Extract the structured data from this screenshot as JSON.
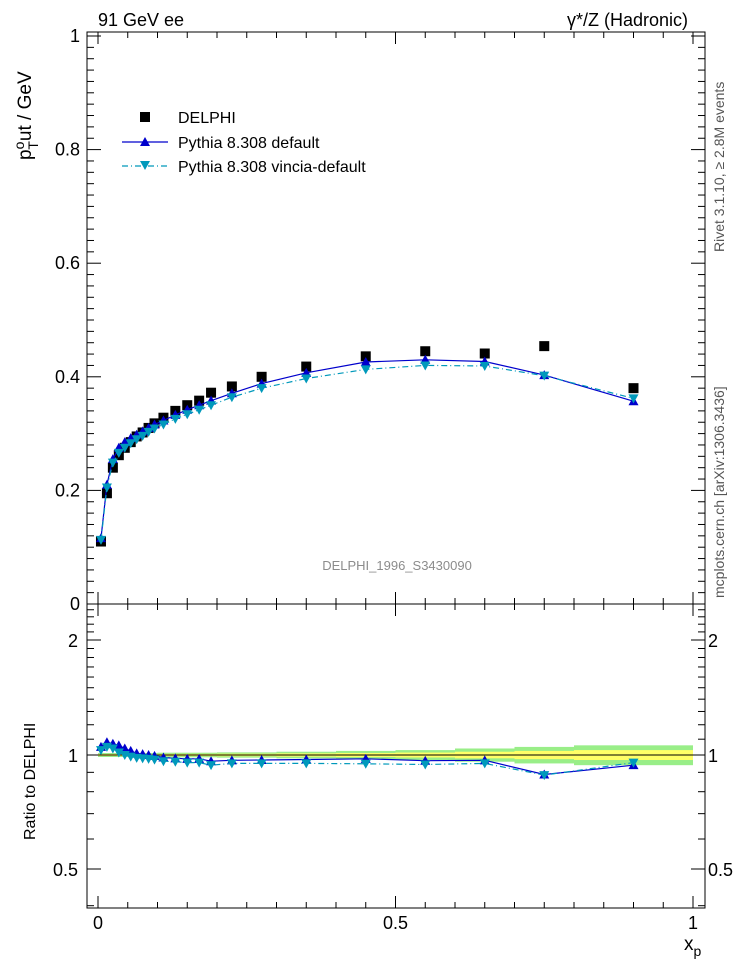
{
  "header": {
    "left": "91 GeV ee",
    "right": "γ*/Z (Hadronic)"
  },
  "side": {
    "rivet": "Rivet 3.1.10, ≥ 2.8M events",
    "mcplots": "mcplots.cern.ch [arXiv:1306.3436]"
  },
  "watermark": "DELPHI_1996_S3430090",
  "colors": {
    "data": "#000000",
    "default": "#0000cc",
    "vincia": "#0099bb",
    "band_inner": "#ffff66",
    "band_outer": "#99ee88"
  },
  "chart_data": [
    {
      "type": "scatter",
      "panel": "main",
      "ylabel": {
        "base": "p",
        "sup": "o",
        "sub": "T",
        "rest": "ut / GeV"
      },
      "xlim": [
        0,
        1
      ],
      "ylim": [
        0,
        1
      ],
      "yticks": [
        {
          "v": 0,
          "label": "0"
        },
        {
          "v": 0.2,
          "label": "0.2"
        },
        {
          "v": 0.4,
          "label": "0.4"
        },
        {
          "v": 0.6,
          "label": "0.6"
        },
        {
          "v": 0.8,
          "label": "0.8"
        },
        {
          "v": 1,
          "label": "1"
        }
      ],
      "legend_position": "top-left",
      "series": [
        {
          "name": "DELPHI",
          "style": "data",
          "x": [
            0.005,
            0.015,
            0.025,
            0.035,
            0.045,
            0.055,
            0.065,
            0.075,
            0.085,
            0.095,
            0.11,
            0.13,
            0.15,
            0.17,
            0.19,
            0.225,
            0.275,
            0.35,
            0.45,
            0.55,
            0.65,
            0.75,
            0.9
          ],
          "y": [
            0.11,
            0.195,
            0.24,
            0.262,
            0.275,
            0.285,
            0.295,
            0.302,
            0.31,
            0.318,
            0.328,
            0.34,
            0.35,
            0.358,
            0.372,
            0.383,
            0.4,
            0.418,
            0.436,
            0.445,
            0.441,
            0.454,
            0.38
          ]
        },
        {
          "name": "Pythia 8.308 default",
          "style": "default",
          "x": [
            0.005,
            0.015,
            0.025,
            0.035,
            0.045,
            0.055,
            0.065,
            0.075,
            0.085,
            0.095,
            0.11,
            0.13,
            0.15,
            0.17,
            0.19,
            0.225,
            0.275,
            0.35,
            0.45,
            0.55,
            0.65,
            0.75,
            0.9
          ],
          "y": [
            0.116,
            0.21,
            0.255,
            0.275,
            0.285,
            0.292,
            0.298,
            0.304,
            0.31,
            0.316,
            0.323,
            0.333,
            0.342,
            0.35,
            0.358,
            0.371,
            0.388,
            0.407,
            0.426,
            0.43,
            0.427,
            0.403,
            0.357
          ]
        },
        {
          "name": "Pythia 8.308 vincia-default",
          "style": "vincia",
          "x": [
            0.005,
            0.015,
            0.025,
            0.035,
            0.045,
            0.055,
            0.065,
            0.075,
            0.085,
            0.095,
            0.11,
            0.13,
            0.15,
            0.17,
            0.19,
            0.225,
            0.275,
            0.35,
            0.45,
            0.55,
            0.65,
            0.75,
            0.9
          ],
          "y": [
            0.113,
            0.205,
            0.249,
            0.266,
            0.275,
            0.283,
            0.29,
            0.296,
            0.303,
            0.309,
            0.316,
            0.326,
            0.334,
            0.342,
            0.35,
            0.364,
            0.38,
            0.397,
            0.413,
            0.42,
            0.419,
            0.402,
            0.362
          ]
        }
      ]
    },
    {
      "type": "line",
      "panel": "ratio",
      "ylabel": "Ratio to DELPHI",
      "xlabel": {
        "base": "x",
        "sub": "p"
      },
      "xlim": [
        0,
        1
      ],
      "ylim": [
        0.3,
        2.5
      ],
      "xticks": [
        {
          "v": 0,
          "label": "0"
        },
        {
          "v": 0.5,
          "label": "0.5"
        },
        {
          "v": 1,
          "label": "1"
        }
      ],
      "yticks": [
        {
          "v": 0.5,
          "label": "0.5"
        },
        {
          "v": 1,
          "label": "1"
        },
        {
          "v": 2,
          "label": "2"
        }
      ],
      "band": {
        "x_edges": [
          0,
          0.1,
          0.2,
          0.3,
          0.4,
          0.5,
          0.6,
          0.7,
          0.8,
          1.0
        ],
        "inner": [
          0.006,
          0.007,
          0.008,
          0.01,
          0.012,
          0.015,
          0.02,
          0.025,
          0.03
        ],
        "outer": [
          0.012,
          0.014,
          0.016,
          0.02,
          0.025,
          0.03,
          0.04,
          0.05,
          0.06
        ]
      },
      "series": [
        {
          "name": "Pythia 8.308 default",
          "style": "default",
          "x": [
            0.005,
            0.015,
            0.025,
            0.035,
            0.045,
            0.055,
            0.065,
            0.075,
            0.085,
            0.095,
            0.11,
            0.13,
            0.15,
            0.17,
            0.19,
            0.225,
            0.275,
            0.35,
            0.45,
            0.55,
            0.65,
            0.75,
            0.9
          ],
          "y": [
            1.05,
            1.08,
            1.07,
            1.06,
            1.04,
            1.025,
            1.01,
            1.005,
            1.0,
            0.995,
            0.985,
            0.98,
            0.977,
            0.977,
            0.963,
            0.968,
            0.97,
            0.973,
            0.977,
            0.966,
            0.968,
            0.888,
            0.94
          ]
        },
        {
          "name": "Pythia 8.308 vincia-default",
          "style": "vincia",
          "x": [
            0.005,
            0.015,
            0.025,
            0.035,
            0.045,
            0.055,
            0.065,
            0.075,
            0.085,
            0.095,
            0.11,
            0.13,
            0.15,
            0.17,
            0.19,
            0.225,
            0.275,
            0.35,
            0.45,
            0.55,
            0.65,
            0.75,
            0.9
          ],
          "y": [
            1.03,
            1.05,
            1.04,
            1.015,
            1.0,
            0.99,
            0.983,
            0.98,
            0.977,
            0.972,
            0.963,
            0.96,
            0.955,
            0.955,
            0.94,
            0.95,
            0.95,
            0.95,
            0.948,
            0.944,
            0.95,
            0.885,
            0.955
          ]
        }
      ]
    }
  ]
}
